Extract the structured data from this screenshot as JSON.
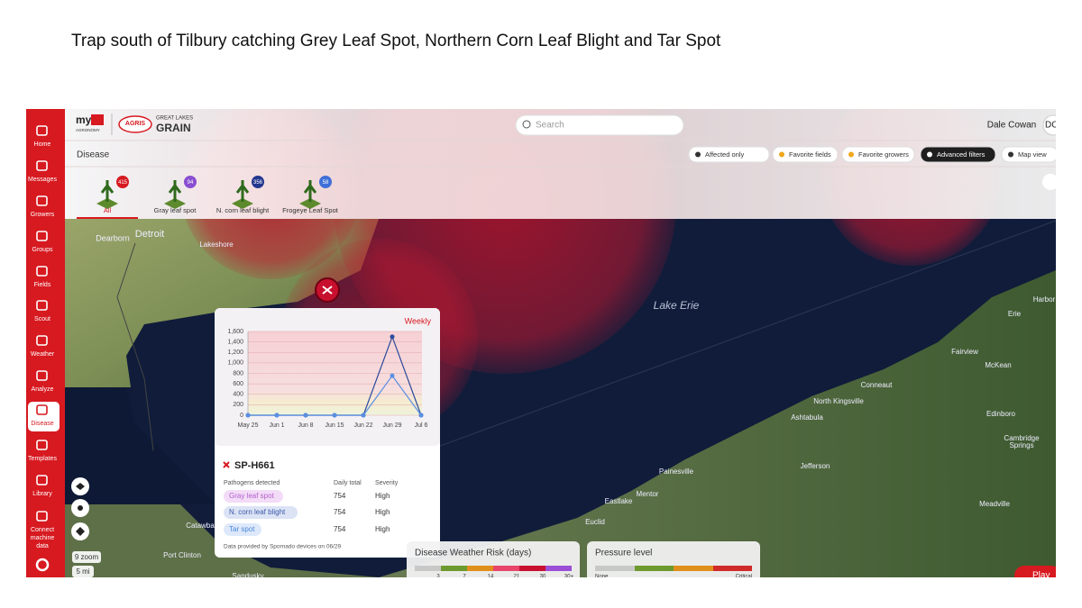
{
  "slide_title": "Trap south of Tilbury catching Grey Leaf Spot, Northern Corn Leaf Blight and Tar Spot",
  "header": {
    "brand": {
      "my": "my",
      "agronomy": "AGRONOMY",
      "agris": "AGRIS",
      "great_lakes": "GREAT LAKES",
      "grain": "GRAIN"
    },
    "search_placeholder": "Search",
    "user_name": "Dale Cowan",
    "user_initials": "DC"
  },
  "sidebar": [
    {
      "lines": [
        "Home"
      ]
    },
    {
      "lines": [
        "Messages"
      ]
    },
    {
      "lines": [
        "Growers"
      ]
    },
    {
      "lines": [
        "Groups"
      ]
    },
    {
      "lines": [
        "Fields"
      ]
    },
    {
      "lines": [
        "Scout"
      ]
    },
    {
      "lines": [
        "Weather"
      ]
    },
    {
      "lines": [
        "Analyze"
      ]
    },
    {
      "lines": [
        "Disease"
      ]
    },
    {
      "lines": [
        "Templates"
      ]
    },
    {
      "lines": [
        "Library"
      ]
    },
    {
      "lines": [
        "Connect",
        "machine",
        "data"
      ]
    }
  ],
  "toolbar": {
    "section": "Disease",
    "filters": [
      "Affected only",
      "Favorite fields",
      "Favorite growers",
      "Advanced filters",
      "Map view"
    ]
  },
  "tabs": [
    {
      "label": "All",
      "count": 415
    },
    {
      "label": "Gray leaf spot",
      "count": 94
    },
    {
      "label": "N. corn leaf blight",
      "count": 356
    },
    {
      "label": "Frogeye Leaf Spot",
      "count": 58
    }
  ],
  "map_labels": [
    "Detroit",
    "Dearborn",
    "Lakeshore",
    "Lake Erie",
    "Harbor",
    "Erie",
    "Fairview",
    "McKean",
    "Conneaut",
    "North Kingsville",
    "Ashtabula",
    "Edinboro",
    "Cambridge",
    "Springs",
    "Jefferson",
    "Painesville",
    "Mentor",
    "Eastlake",
    "Euclid",
    "Meadville",
    "Catawba",
    "Port Clinton",
    "Sandusky"
  ],
  "chart_data": {
    "type": "line",
    "categories": [
      "May 25",
      "Jun 1",
      "Jun 8",
      "Jun 15",
      "Jun 22",
      "Jun 29",
      "Jul 6"
    ],
    "series": [
      {
        "color": "#2b4a9c",
        "values": [
          0,
          0,
          0,
          0,
          0,
          1500,
          0
        ]
      },
      {
        "color": "#5a8fe3",
        "values": [
          0,
          0,
          0,
          0,
          0,
          754,
          0
        ]
      }
    ],
    "ylim": [
      0,
      1600
    ],
    "yticks": [
      0,
      200,
      400,
      600,
      800,
      {
        "value": 1000,
        "label": "1,000"
      },
      {
        "value": 1200,
        "label": "1,200"
      },
      {
        "value": 1400,
        "label": "1,400"
      },
      {
        "value": 1600,
        "label": "1,600"
      }
    ],
    "grid": true
  },
  "trap_popup": {
    "period": "Weekly",
    "trap_id": "SP-H661",
    "columns": [
      "Pathogens detected",
      "Daily total",
      "Severity"
    ],
    "rows": [
      [
        "Gray leaf spot",
        754,
        "High"
      ],
      [
        "N. corn leaf blight",
        754,
        "High"
      ],
      [
        "Tar spot",
        754,
        "High"
      ]
    ],
    "footer": "Data provided by Spornado devices on 06/29"
  },
  "map_controls": {
    "zoom": "9 zoom",
    "scale": "5 mi"
  },
  "legends": {
    "weather_risk": {
      "title": "Disease Weather Risk (days)",
      "ticks": [
        3,
        7,
        14,
        21,
        30,
        "30+"
      ]
    },
    "pressure": {
      "title": "Pressure level",
      "low": "None",
      "high": "Critical"
    }
  },
  "play": "Play"
}
